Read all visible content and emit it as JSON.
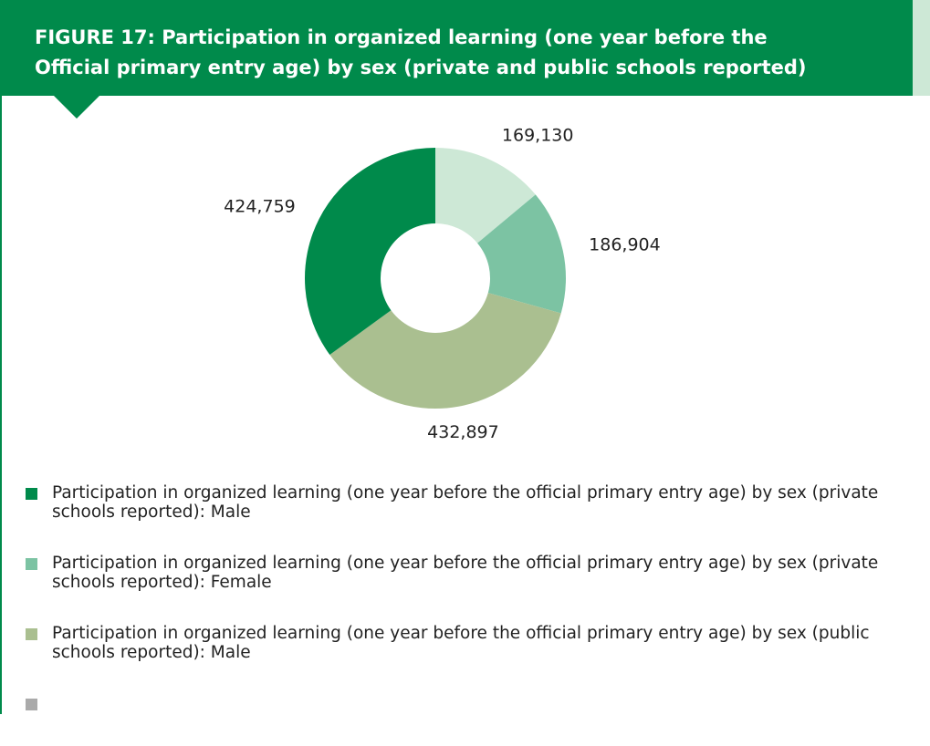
{
  "chart_data": {
    "type": "donut",
    "title_lines": [
      "FIGURE 17: Participation in organized learning (one year before the",
      "Official primary entry age) by sex (private and public schools reported)"
    ],
    "values": [
      169130,
      186904,
      432897,
      424759
    ],
    "value_labels": [
      "169,130",
      "186,904",
      "432,897",
      "424,759"
    ],
    "colors": [
      "#cde8d6",
      "#7cc3a3",
      "#aabf90",
      "#008a4b"
    ],
    "legend": [
      {
        "name": "Participation in organized learning (one year before the official primary entry age) by sex (private schools reported): Male",
        "color": "#008a4b"
      },
      {
        "name": "Participation in organized learning (one year before the official primary entry age) by sex (private schools reported): Female",
        "color": "#7cc3a3"
      },
      {
        "name": "Participation in organized learning (one year before the official primary entry age) by sex (public schools reported): Male",
        "color": "#aabf90"
      },
      {
        "name": null,
        "color": "#aaaaaa"
      }
    ]
  }
}
